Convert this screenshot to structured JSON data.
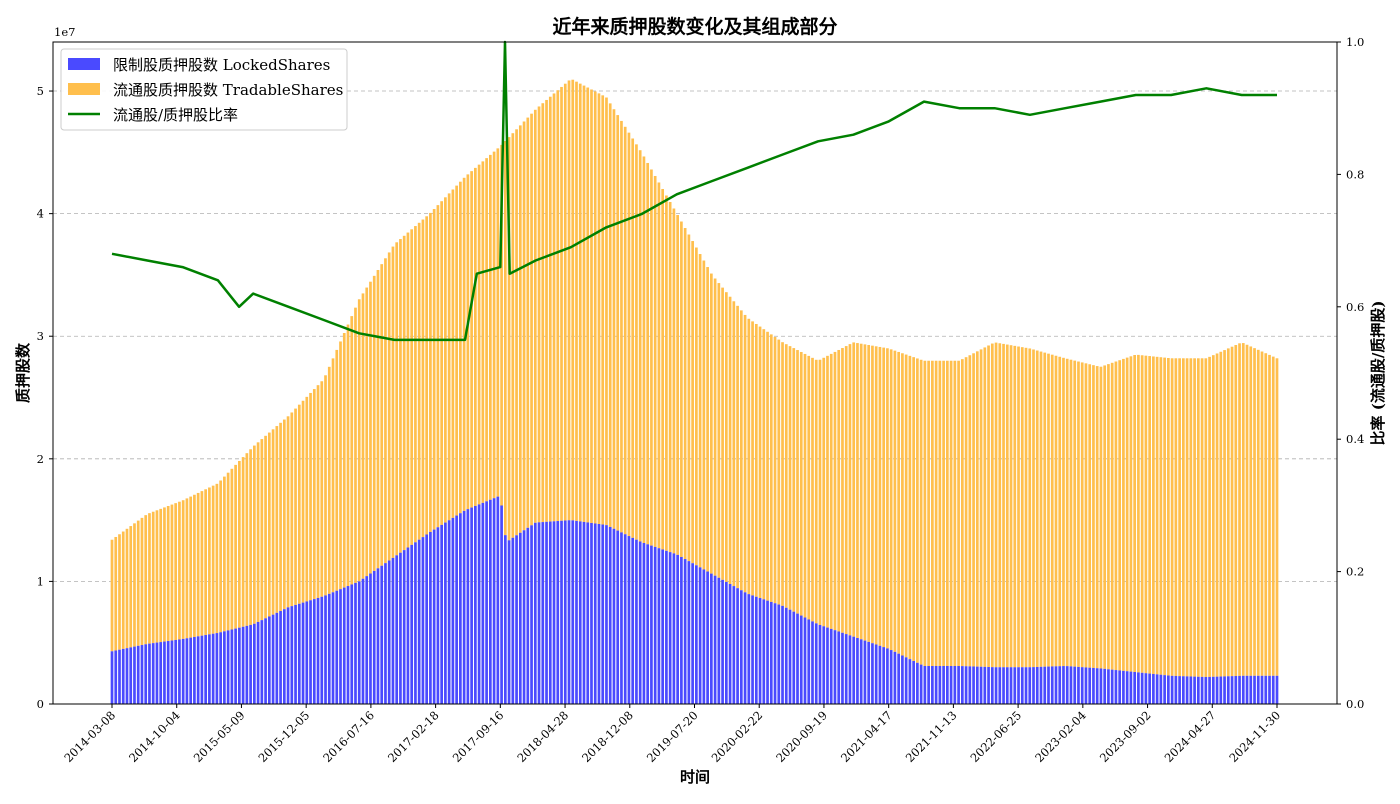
{
  "chart_data": {
    "type": "bar",
    "title": "近年来质押股数变化及其组成部分",
    "xlabel": "时间",
    "ylabel": "质押股数",
    "ylabel_right": "比率 (流通股/质押股)",
    "y_offset_label": "1e7",
    "ylim": [
      0,
      54000000
    ],
    "ylim_right": [
      0.0,
      1.0
    ],
    "yticks": [
      0,
      1,
      2,
      3,
      4,
      5
    ],
    "yticks_right": [
      "0.0",
      "0.2",
      "0.4",
      "0.6",
      "0.8",
      "1.0"
    ],
    "grid": "horizontal dashed",
    "legend_position": "upper-left",
    "x_ticks": [
      "2014-03-08",
      "2014-10-04",
      "2015-05-09",
      "2015-12-05",
      "2016-07-16",
      "2017-02-18",
      "2017-09-16",
      "2018-04-28",
      "2018-12-08",
      "2019-07-20",
      "2020-02-22",
      "2020-09-19",
      "2021-04-17",
      "2021-11-13",
      "2022-06-25",
      "2023-02-04",
      "2023-09-02",
      "2024-04-27",
      "2024-11-30"
    ],
    "series": [
      {
        "name": "限制股质押股数 LockedShares",
        "type": "bar",
        "color": "#4a4aff",
        "approx_values": [
          [
            0,
            4300000
          ],
          [
            3,
            4900000
          ],
          [
            6,
            5300000
          ],
          [
            9,
            5800000
          ],
          [
            12,
            6500000
          ],
          [
            15,
            7900000
          ],
          [
            18,
            8800000
          ],
          [
            21,
            10000000
          ],
          [
            24,
            12000000
          ],
          [
            27,
            14000000
          ],
          [
            30,
            15800000
          ],
          [
            33,
            17000000
          ],
          [
            33.5,
            13200000
          ],
          [
            36,
            14800000
          ],
          [
            39,
            15000000
          ],
          [
            42,
            14600000
          ],
          [
            45,
            13200000
          ],
          [
            48,
            12200000
          ],
          [
            51,
            10600000
          ],
          [
            54,
            9000000
          ],
          [
            57,
            8000000
          ],
          [
            60,
            6500000
          ],
          [
            63,
            5500000
          ],
          [
            66,
            4500000
          ],
          [
            69,
            3100000
          ],
          [
            72,
            3100000
          ],
          [
            75,
            3000000
          ],
          [
            78,
            3000000
          ],
          [
            81,
            3100000
          ],
          [
            84,
            2900000
          ],
          [
            87,
            2600000
          ],
          [
            90,
            2300000
          ],
          [
            93,
            2200000
          ],
          [
            96,
            2300000
          ],
          [
            99,
            2300000
          ]
        ]
      },
      {
        "name": "流通股质押股数 TradableShares",
        "type": "bar",
        "color": "#ffbf4d",
        "stacked_total_approx": [
          [
            0,
            13400000
          ],
          [
            3,
            15500000
          ],
          [
            6,
            16600000
          ],
          [
            9,
            18000000
          ],
          [
            12,
            21000000
          ],
          [
            15,
            23500000
          ],
          [
            18,
            26500000
          ],
          [
            21,
            33000000
          ],
          [
            24,
            37500000
          ],
          [
            27,
            40000000
          ],
          [
            30,
            43000000
          ],
          [
            33,
            45500000
          ],
          [
            36,
            48500000
          ],
          [
            39,
            51000000
          ],
          [
            42,
            49500000
          ],
          [
            45,
            45000000
          ],
          [
            48,
            40000000
          ],
          [
            51,
            35000000
          ],
          [
            54,
            31500000
          ],
          [
            57,
            29500000
          ],
          [
            60,
            28000000
          ],
          [
            63,
            29500000
          ],
          [
            66,
            29000000
          ],
          [
            69,
            28000000
          ],
          [
            72,
            28000000
          ],
          [
            75,
            29500000
          ],
          [
            78,
            29000000
          ],
          [
            81,
            28200000
          ],
          [
            84,
            27500000
          ],
          [
            87,
            28500000
          ],
          [
            90,
            28200000
          ],
          [
            93,
            28200000
          ],
          [
            96,
            29500000
          ],
          [
            99,
            28200000
          ]
        ]
      },
      {
        "name": "流通股/质押股比率",
        "type": "line",
        "color": "#008000",
        "axis": "right",
        "approx_values": [
          [
            0,
            0.68
          ],
          [
            3,
            0.67
          ],
          [
            6,
            0.66
          ],
          [
            9,
            0.64
          ],
          [
            10.8,
            0.6
          ],
          [
            12,
            0.62
          ],
          [
            15,
            0.6
          ],
          [
            18,
            0.58
          ],
          [
            21,
            0.56
          ],
          [
            24,
            0.55
          ],
          [
            27,
            0.55
          ],
          [
            30,
            0.55
          ],
          [
            31,
            0.65
          ],
          [
            33,
            0.66
          ],
          [
            33.4,
            1.0
          ],
          [
            33.8,
            0.65
          ],
          [
            36,
            0.67
          ],
          [
            39,
            0.69
          ],
          [
            42,
            0.72
          ],
          [
            45,
            0.74
          ],
          [
            48,
            0.77
          ],
          [
            51,
            0.79
          ],
          [
            54,
            0.81
          ],
          [
            57,
            0.83
          ],
          [
            60,
            0.85
          ],
          [
            63,
            0.86
          ],
          [
            66,
            0.88
          ],
          [
            69,
            0.91
          ],
          [
            72,
            0.9
          ],
          [
            75,
            0.9
          ],
          [
            78,
            0.89
          ],
          [
            81,
            0.9
          ],
          [
            84,
            0.91
          ],
          [
            87,
            0.92
          ],
          [
            90,
            0.92
          ],
          [
            93,
            0.93
          ],
          [
            96,
            0.92
          ],
          [
            99,
            0.92
          ]
        ]
      }
    ]
  }
}
